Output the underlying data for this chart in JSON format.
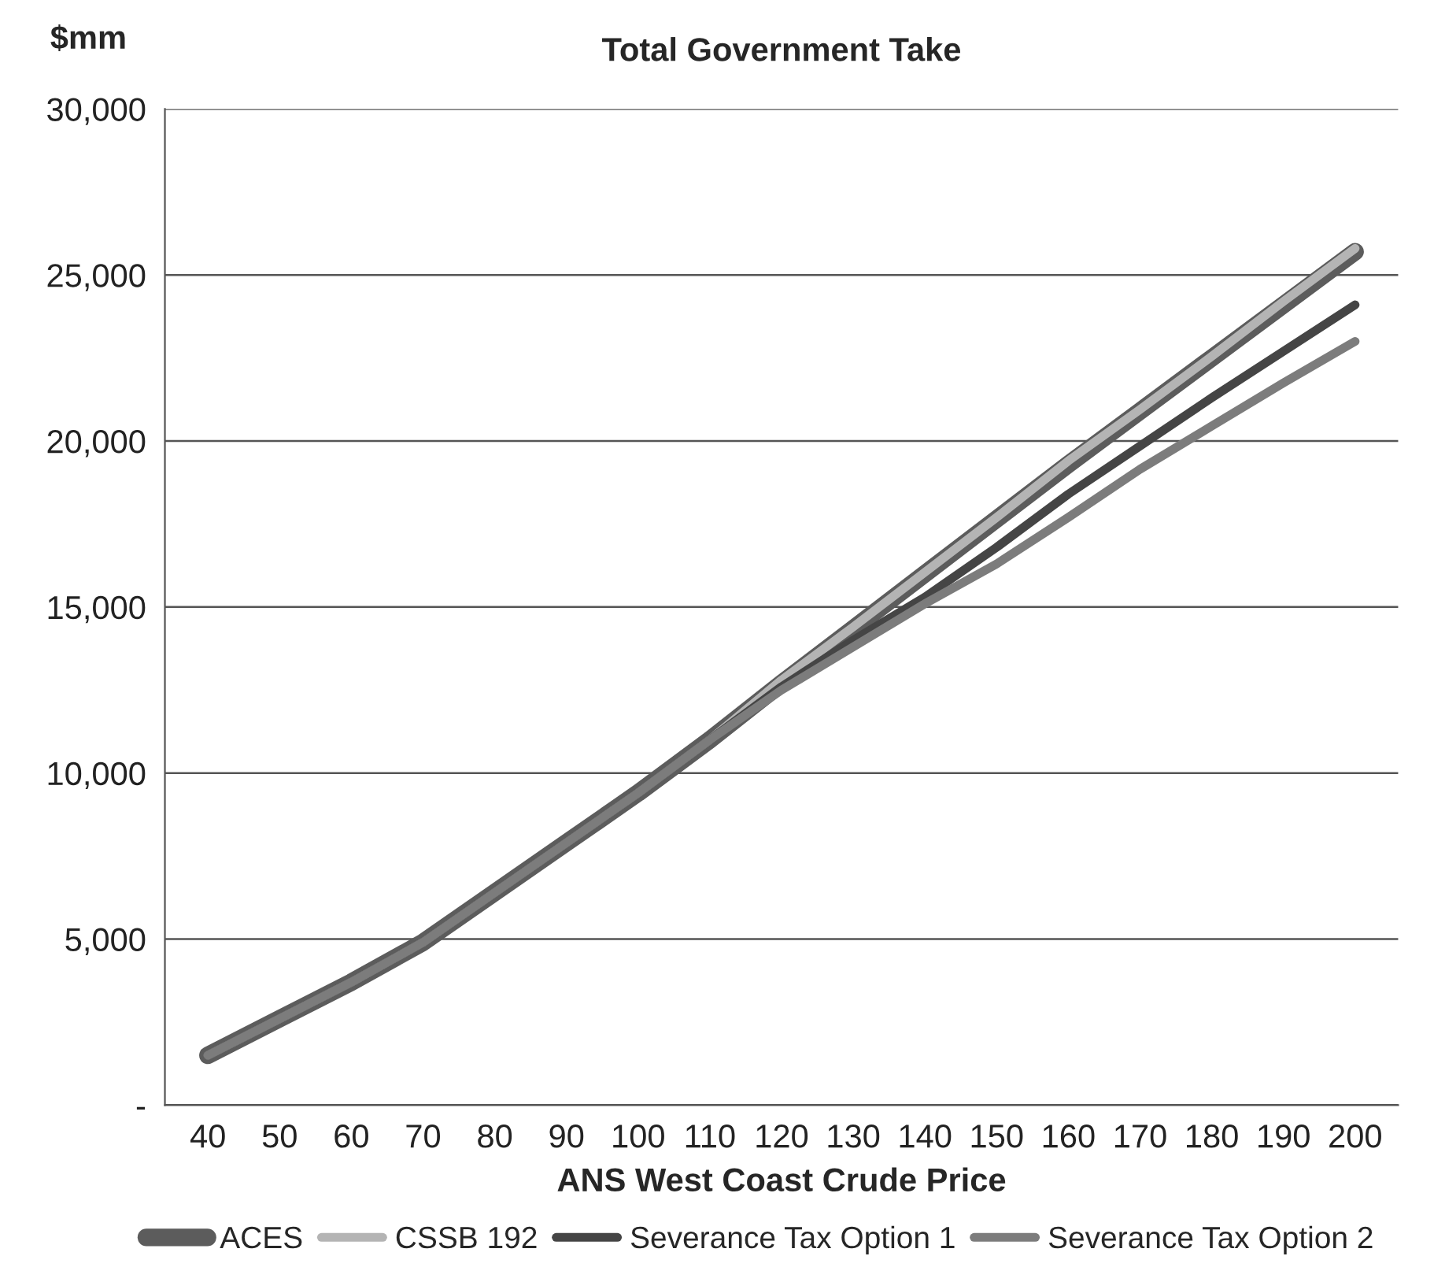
{
  "chart_data": {
    "type": "line",
    "title": "Total Government Take",
    "ylabel": "$mm",
    "xlabel": "ANS West Coast Crude Price",
    "categories": [
      "40",
      "50",
      "60",
      "70",
      "80",
      "90",
      "100",
      "110",
      "120",
      "130",
      "140",
      "150",
      "160",
      "170",
      "180",
      "190",
      "200"
    ],
    "series": [
      {
        "name": "ACES",
        "color": "#5c5c5c",
        "values": [
          1500,
          2600,
          3700,
          4900,
          6400,
          7900,
          9400,
          11000,
          12700,
          14350,
          16000,
          17650,
          19300,
          20900,
          22500,
          24100,
          25700
        ]
      },
      {
        "name": "CSSB 192",
        "color": "#b4b4b4",
        "values": [
          1500,
          2600,
          3700,
          4900,
          6400,
          7900,
          9400,
          11000,
          12800,
          14400,
          16050,
          17700,
          19400,
          20950,
          22550,
          24200,
          25800
        ]
      },
      {
        "name": "Severance Tax Option 1",
        "color": "#454545",
        "values": [
          1500,
          2600,
          3700,
          4900,
          6400,
          7900,
          9400,
          11000,
          12600,
          14000,
          15300,
          16800,
          18400,
          19850,
          21300,
          22700,
          24100
        ]
      },
      {
        "name": "Severance Tax Option 2",
        "color": "#7c7c7c",
        "values": [
          1500,
          2600,
          3700,
          4900,
          6400,
          7900,
          9400,
          11000,
          12500,
          13800,
          15100,
          16300,
          17700,
          19150,
          20450,
          21750,
          23000
        ]
      }
    ],
    "ylim": [
      0,
      30000
    ],
    "yticks": [
      {
        "value": 0,
        "label": "-"
      },
      {
        "value": 5000,
        "label": "5,000"
      },
      {
        "value": 10000,
        "label": "10,000"
      },
      {
        "value": 15000,
        "label": "15,000"
      },
      {
        "value": 20000,
        "label": "20,000"
      },
      {
        "value": 25000,
        "label": "25,000"
      },
      {
        "value": 30000,
        "label": "30,000"
      }
    ],
    "grid": "y",
    "legend": "bottom",
    "line_style": "solid",
    "marker": "none"
  }
}
